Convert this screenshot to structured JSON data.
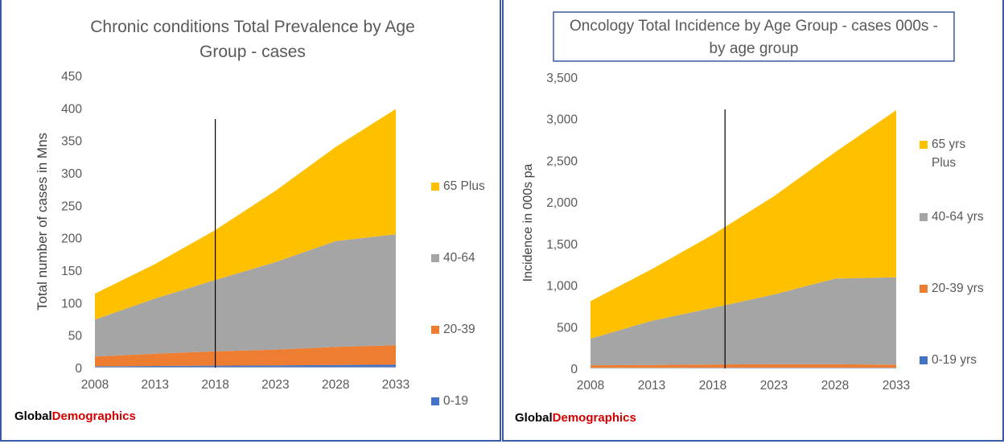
{
  "colors": {
    "c65": "#ffc000",
    "c4064": "#a5a5a5",
    "c2039": "#ed7d31",
    "c019": "#4472c4",
    "divider": "#000000",
    "brand_red": "#d40000"
  },
  "branding": {
    "part1": "Global",
    "part2": "Demographics"
  },
  "chart_data": [
    {
      "type": "area",
      "stacked": true,
      "title_lines": [
        "Chronic conditions Total Prevalence by Age",
        "Group - cases"
      ],
      "ylabel": "Total number of cases in Mns",
      "xlabel": "",
      "x": [
        2008,
        2013,
        2018,
        2023,
        2028,
        2033
      ],
      "x_ticks": [
        "2008",
        "2013",
        "2018",
        "2023",
        "2028",
        "2033"
      ],
      "xlim": [
        2008,
        2033
      ],
      "ylim": [
        0,
        450
      ],
      "y_ticks": [
        "0",
        "50",
        "100",
        "150",
        "200",
        "250",
        "300",
        "350",
        "400",
        "450"
      ],
      "grid": false,
      "legend_position": "right",
      "vline_x": 2018,
      "series": [
        {
          "name": "0-19",
          "color_key": "c019",
          "values": [
            2,
            2.5,
            3,
            3.5,
            4,
            4.5
          ]
        },
        {
          "name": "20-39",
          "color_key": "c2039",
          "values": [
            15,
            19,
            22,
            24,
            28,
            30
          ]
        },
        {
          "name": "40-64",
          "color_key": "c4064",
          "values": [
            57,
            85,
            110,
            135,
            163,
            171
          ]
        },
        {
          "name": "65 Plus",
          "color_key": "c65",
          "values": [
            40,
            53,
            77,
            110,
            145,
            193
          ]
        }
      ],
      "legend": [
        {
          "label": "65 Plus",
          "color_key": "c65"
        },
        {
          "label": "40-64",
          "color_key": "c4064"
        },
        {
          "label": "20-39",
          "color_key": "c2039"
        },
        {
          "label": "0-19",
          "color_key": "c019"
        }
      ]
    },
    {
      "type": "area",
      "stacked": true,
      "title_lines": [
        "Oncology Total Incidence by Age Group - cases 000s -",
        "by age group"
      ],
      "ylabel": "Incidence in 000s pa",
      "xlabel": "",
      "x": [
        2008,
        2013,
        2018,
        2023,
        2028,
        2033
      ],
      "x_ticks": [
        "2008",
        "2013",
        "2018",
        "2023",
        "2028",
        "2033"
      ],
      "xlim": [
        2008,
        2033
      ],
      "ylim": [
        0,
        3500
      ],
      "y_ticks": [
        "0",
        "500",
        "1,000",
        "1,500",
        "2,000",
        "2,500",
        "3,000",
        "3,500"
      ],
      "grid": false,
      "legend_position": "right",
      "vline_x": 2019,
      "series": [
        {
          "name": "0-19 yrs",
          "color_key": "c019",
          "values": [
            8,
            8,
            9,
            9,
            9,
            9
          ]
        },
        {
          "name": "20-39 yrs",
          "color_key": "c2039",
          "values": [
            30,
            33,
            38,
            40,
            40,
            35
          ]
        },
        {
          "name": "40-64 yrs",
          "color_key": "c4064",
          "values": [
            320,
            530,
            680,
            840,
            1030,
            1050
          ]
        },
        {
          "name": "65 yrs Plus",
          "color_key": "c65",
          "values": [
            450,
            620,
            880,
            1180,
            1520,
            2010
          ]
        }
      ],
      "legend": [
        {
          "label_lines": [
            "65 yrs",
            "Plus"
          ],
          "color_key": "c65"
        },
        {
          "label_lines": [
            "40-64 yrs"
          ],
          "color_key": "c4064"
        },
        {
          "label_lines": [
            "20-39 yrs"
          ],
          "color_key": "c2039"
        },
        {
          "label_lines": [
            "0-19 yrs"
          ],
          "color_key": "c019"
        }
      ]
    }
  ]
}
